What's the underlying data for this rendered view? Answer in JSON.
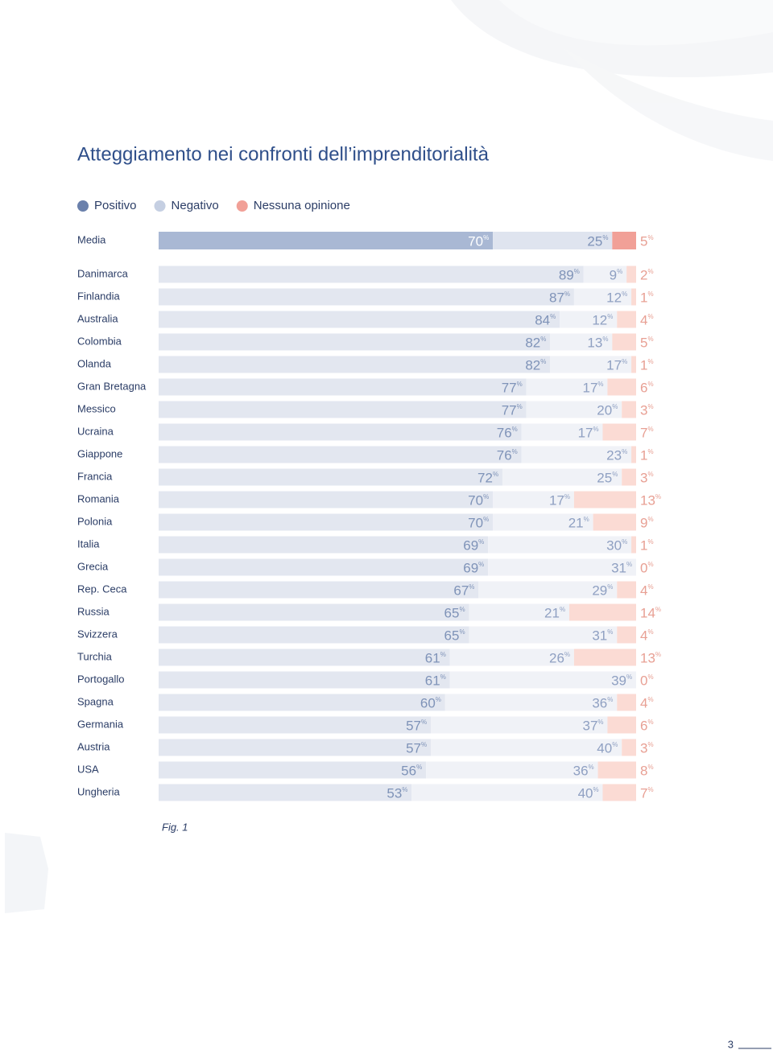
{
  "title": "Atteggiamento nei confronti dell’imprenditorialità",
  "caption": "Fig. 1",
  "page_number": "3",
  "chart_data": [
    {
      "type": "bar",
      "orientation": "horizontal",
      "stacked": true,
      "unit": "%",
      "xlim": [
        0,
        100
      ],
      "legend": "top-left",
      "categories": [
        "Media"
      ],
      "series": [
        {
          "name": "Positivo",
          "color": "#a9b8d4",
          "values": [
            70
          ]
        },
        {
          "name": "Negativo",
          "color": "#dfe4ef",
          "values": [
            25
          ]
        },
        {
          "name": "Nessuna opinione",
          "color": "#f1a097",
          "values": [
            5
          ]
        }
      ]
    },
    {
      "type": "bar",
      "orientation": "horizontal",
      "stacked": true,
      "unit": "%",
      "xlim": [
        0,
        100
      ],
      "categories": [
        "Danimarca",
        "Finlandia",
        "Australia",
        "Colombia",
        "Olanda",
        "Gran Bretagna",
        "Messico",
        "Ucraina",
        "Giappone",
        "Francia",
        "Romania",
        "Polonia",
        "Italia",
        "Grecia",
        "Rep. Ceca",
        "Russia",
        "Svizzera",
        "Turchia",
        "Portogallo",
        "Spagna",
        "Germania",
        "Austria",
        "USA",
        "Ungheria"
      ],
      "series": [
        {
          "name": "Positivo",
          "color": "#e3e7f0",
          "values": [
            89,
            87,
            84,
            82,
            82,
            77,
            77,
            76,
            76,
            72,
            70,
            70,
            69,
            69,
            67,
            65,
            65,
            61,
            61,
            60,
            57,
            57,
            56,
            53
          ]
        },
        {
          "name": "Negativo",
          "color": "#f0f2f7",
          "values": [
            9,
            12,
            12,
            13,
            17,
            17,
            20,
            17,
            23,
            25,
            17,
            21,
            30,
            31,
            29,
            21,
            31,
            26,
            39,
            36,
            37,
            40,
            36,
            40
          ]
        },
        {
          "name": "Nessuna opinione",
          "color": "#fbdbd4",
          "values": [
            2,
            1,
            4,
            5,
            1,
            6,
            3,
            7,
            1,
            3,
            13,
            9,
            1,
            0,
            4,
            14,
            4,
            13,
            0,
            4,
            6,
            3,
            8,
            7
          ]
        }
      ]
    }
  ]
}
